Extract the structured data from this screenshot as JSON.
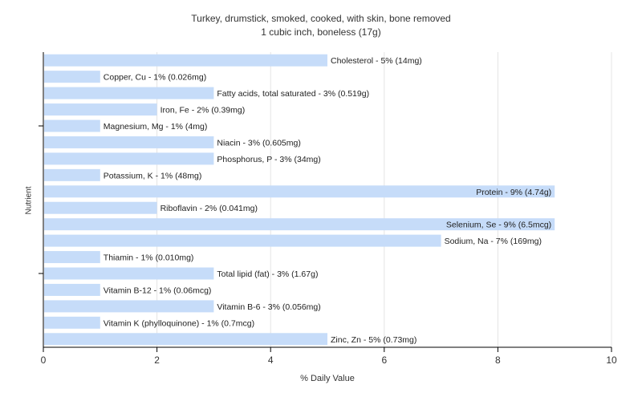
{
  "chart_data": {
    "type": "bar",
    "orientation": "horizontal",
    "title": "Turkey, drumstick, smoked, cooked, with skin, bone removed",
    "subtitle": "1 cubic inch, boneless (17g)",
    "xlabel": "% Daily Value",
    "ylabel": "Nutrient",
    "xlim": [
      0,
      10
    ],
    "xticks": [
      "0",
      "2",
      "4",
      "6",
      "8",
      "10"
    ],
    "grid": true,
    "bar_color": "#c6dcf9",
    "categories": [
      "Cholesterol",
      "Copper, Cu",
      "Fatty acids, total saturated",
      "Iron, Fe",
      "Magnesium, Mg",
      "Niacin",
      "Phosphorus, P",
      "Potassium, K",
      "Protein",
      "Riboflavin",
      "Selenium, Se",
      "Sodium, Na",
      "Thiamin",
      "Total lipid (fat)",
      "Vitamin B-12",
      "Vitamin B-6",
      "Vitamin K (phylloquinone)",
      "Zinc, Zn"
    ],
    "values": [
      5,
      1,
      3,
      2,
      1,
      3,
      3,
      1,
      9,
      2,
      9,
      7,
      1,
      3,
      1,
      3,
      1,
      5
    ],
    "labels": [
      "Cholesterol - 5% (14mg)",
      "Copper, Cu - 1% (0.026mg)",
      "Fatty acids, total saturated - 3% (0.519g)",
      "Iron, Fe - 2% (0.39mg)",
      "Magnesium, Mg - 1% (4mg)",
      "Niacin - 3% (0.605mg)",
      "Phosphorus, P - 3% (34mg)",
      "Potassium, K - 1% (48mg)",
      "Protein - 9% (4.74g)",
      "Riboflavin - 2% (0.041mg)",
      "Selenium, Se - 9% (6.5mcg)",
      "Sodium, Na - 7% (169mg)",
      "Thiamin - 1% (0.010mg)",
      "Total lipid (fat) - 3% (1.67g)",
      "Vitamin B-12 - 1% (0.06mcg)",
      "Vitamin B-6 - 3% (0.056mg)",
      "Vitamin K (phylloquinone) - 1% (0.7mcg)",
      "Zinc, Zn - 5% (0.73mg)"
    ]
  }
}
